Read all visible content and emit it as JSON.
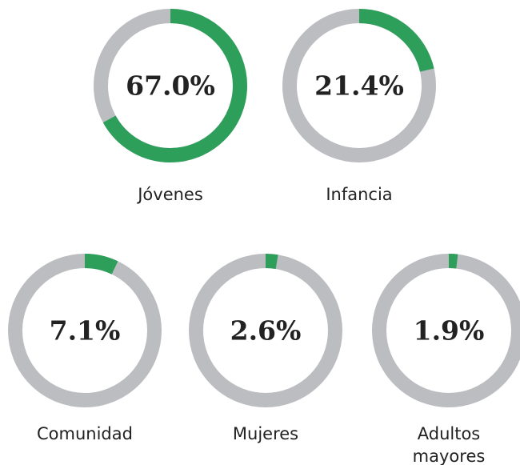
{
  "chart_data": {
    "type": "donut",
    "categories": [
      "Jóvenes",
      "Infancia",
      "Comunidad",
      "Mujeres",
      "Adultos mayores"
    ],
    "values": [
      67.0,
      21.4,
      7.1,
      2.6,
      1.9
    ],
    "value_labels": [
      "67.0%",
      "21.4%",
      "7.1%",
      "2.6%",
      "1.9%"
    ],
    "color": "#2e9e5b",
    "track_color": "#bcbdc0"
  }
}
